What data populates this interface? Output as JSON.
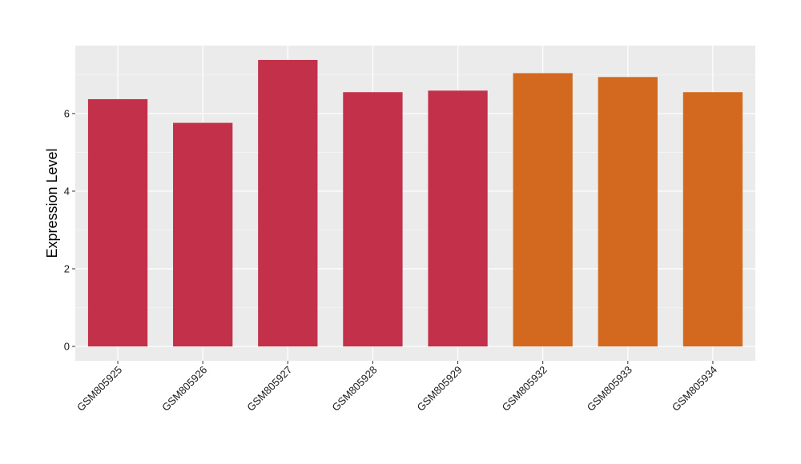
{
  "chart_data": {
    "type": "bar",
    "title": "",
    "xlabel": "",
    "ylabel": "Expression Level",
    "categories": [
      "GSM805925",
      "GSM805926",
      "GSM805927",
      "GSM805928",
      "GSM805929",
      "GSM805932",
      "GSM805933",
      "GSM805934"
    ],
    "values": [
      6.37,
      5.76,
      7.38,
      6.55,
      6.59,
      7.04,
      6.94,
      6.55
    ],
    "groups": [
      0,
      0,
      0,
      0,
      0,
      1,
      1,
      1
    ],
    "group_colors": [
      "#c23049",
      "#d2691e"
    ],
    "yticks": [
      0,
      2,
      4,
      6
    ],
    "ylim": [
      -0.37,
      7.75
    ],
    "grid": true,
    "legend": "none"
  },
  "colors": {
    "panel_background": "#ebebeb",
    "grid_major": "#ffffff",
    "grid_minor": "#f5f5f5"
  }
}
